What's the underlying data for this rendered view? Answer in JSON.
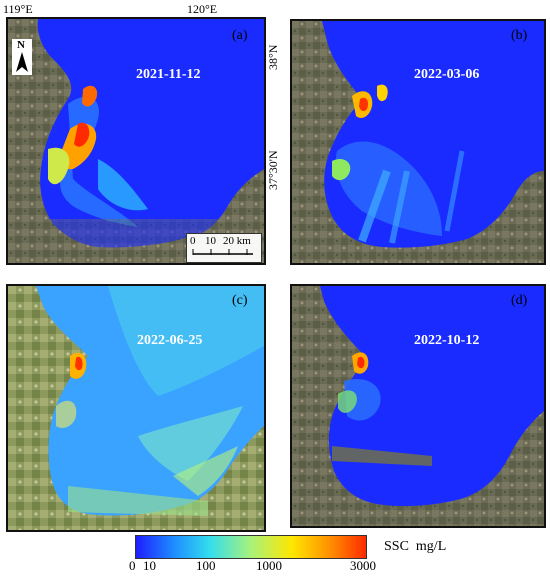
{
  "axes": {
    "lon_labels": [
      "119°E",
      "120°E"
    ],
    "lat_labels": [
      "38°N",
      "37°30'N"
    ]
  },
  "north_arrow": {
    "letter": "N"
  },
  "scale_bar": {
    "labels": [
      "0",
      "10",
      "20 km"
    ]
  },
  "panels": [
    {
      "id": "a",
      "label": "(a)",
      "date": "2021-11-12"
    },
    {
      "id": "b",
      "label": "(b)",
      "date": "2022-03-06"
    },
    {
      "id": "c",
      "label": "(c)",
      "date": "2022-06-25"
    },
    {
      "id": "d",
      "label": "(d)",
      "date": "2022-10-12"
    }
  ],
  "colorbar": {
    "title": "SSC  mg/L",
    "ticks": [
      "0",
      "10",
      "100",
      "1000",
      "3000"
    ],
    "colors": [
      "#1e1eff",
      "#1e90ff",
      "#33ddee",
      "#a8f27a",
      "#ffe600",
      "#ff8c00",
      "#ff2a00"
    ]
  }
}
